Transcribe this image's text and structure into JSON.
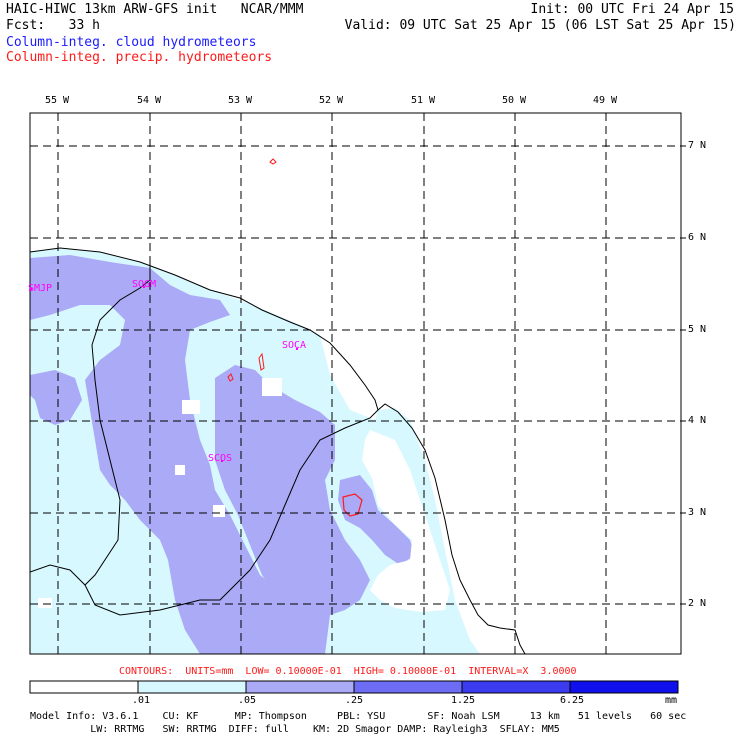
{
  "header": {
    "left_line1": "HAIC-HIWC 13km ARW-GFS init   NCAR/MMM",
    "left_line2": "Fcst:   33 h",
    "right_line1": "Init: 00 UTC Fri 24 Apr 15",
    "right_line2": "Valid: 09 UTC Sat 25 Apr 15 (06 LST Sat 25 Apr 15)",
    "legend_cloud": "Column-integ. cloud hydrometeors",
    "legend_precip": "Column-integ. precip. hydrometeors"
  },
  "longitude_labels": [
    "55 W",
    "54 W",
    "53 W",
    "52 W",
    "51 W",
    "50 W",
    "49 W"
  ],
  "latitude_labels": [
    "7 N",
    "6 N",
    "5 N",
    "4 N",
    "3 N",
    "2 N"
  ],
  "stations": [
    "SMJP",
    "SOGM",
    "SOCA",
    "SCOS"
  ],
  "contour_info": "CONTOURS:  UNITS=mm  LOW= 0.10000E-01  HIGH= 0.10000E-01  INTERVAL=X  3.0000",
  "colorbar": {
    "ticks": [
      ".01",
      ".05",
      ".25",
      "1.25",
      "6.25"
    ],
    "unit": "mm",
    "colors": [
      "#ffffff",
      "#d8f8ff",
      "#aaaaf6",
      "#6c6cf4",
      "#3b3bf0",
      "#1010ee"
    ]
  },
  "footer": {
    "line1": "Model Info: V3.6.1    CU: KF      MP: Thompson     PBL: YSU       SF: Noah LSM     13 km   51 levels   60 sec",
    "line2": "          LW: RRTMG   SW: RRTMG  DIFF: full    KM: 2D Smagor DAMP: Rayleigh3  SFLAY: MM5"
  },
  "colors": {
    "cloud_low": "#d8f8ff",
    "cloud_mid": "#aaaaf6",
    "precip_contour": "#ff1a1a",
    "station_label": "#ff00ff",
    "title_blue": "#1a1aff"
  }
}
